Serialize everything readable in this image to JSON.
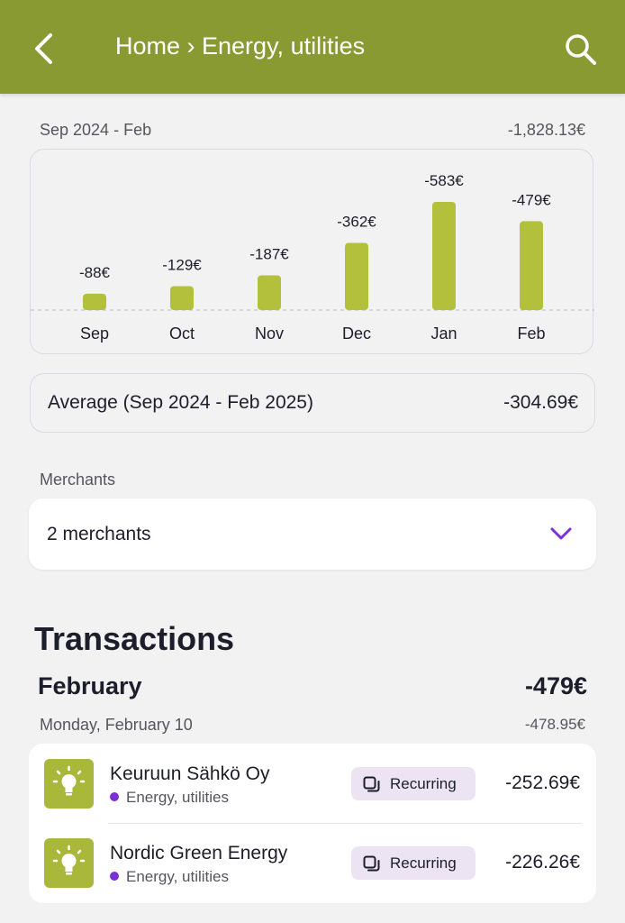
{
  "header": {
    "title": "Home › Energy, utilities",
    "back_icon": "chevron-left-icon",
    "search_icon": "search-icon",
    "color": "#8a9a33"
  },
  "summary": {
    "period_label": "Sep 2024 - Feb",
    "period_total": "-1,828.13€"
  },
  "chart_data": {
    "type": "bar",
    "categories": [
      "Sep",
      "Oct",
      "Nov",
      "Dec",
      "Jan",
      "Feb"
    ],
    "values": [
      -88,
      -129,
      -187,
      -362,
      -583,
      -479
    ],
    "labels": [
      "-88€",
      "-129€",
      "-187€",
      "-362€",
      "-583€",
      "-479€"
    ],
    "bar_color": "#b2c03c",
    "baseline": "dashed"
  },
  "average": {
    "label": "Average (Sep 2024 - Feb 2025)",
    "value": "-304.69€"
  },
  "merchants": {
    "label": "Merchants",
    "value": "2 merchants",
    "chevron_icon": "chevron-down-icon",
    "accent": "#7b2fd6"
  },
  "transactions": {
    "heading": "Transactions",
    "month_label": "February",
    "month_total": "-479€",
    "day_label": "Monday, February 10",
    "day_total": "-478.95€",
    "items": [
      {
        "name": "Keuruun Sähkö Oy",
        "category": "Energy, utilities",
        "badge": "Recurring",
        "amount": "-252.69€",
        "icon": "lightbulb-icon"
      },
      {
        "name": "Nordic Green Energy",
        "category": "Energy, utilities",
        "badge": "Recurring",
        "amount": "-226.26€",
        "icon": "lightbulb-icon"
      }
    ]
  }
}
